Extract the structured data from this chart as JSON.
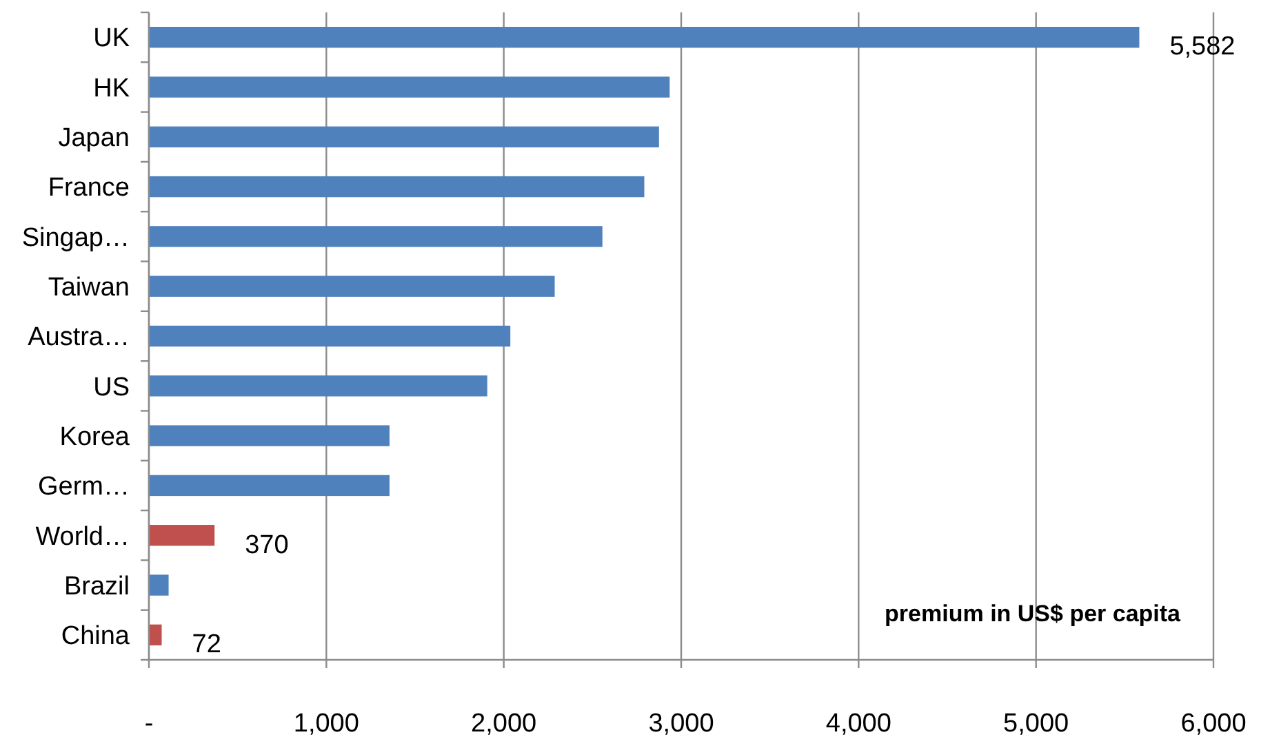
{
  "chart_data": {
    "type": "bar",
    "orientation": "horizontal",
    "categories": [
      "UK",
      "HK",
      "Japan",
      "France",
      "Singap…",
      "Taiwan",
      "Austra…",
      "US",
      "Korea",
      "Germ…",
      "World…",
      "Brazil",
      "China"
    ],
    "values": [
      5582,
      2935,
      2875,
      2792,
      2556,
      2287,
      2037,
      1907,
      1356,
      1356,
      370,
      111,
      72
    ],
    "colors": [
      "#4f81bd",
      "#4f81bd",
      "#4f81bd",
      "#4f81bd",
      "#4f81bd",
      "#4f81bd",
      "#4f81bd",
      "#4f81bd",
      "#4f81bd",
      "#4f81bd",
      "#c0504d",
      "#4f81bd",
      "#c0504d"
    ],
    "value_labels": [
      "5,582",
      null,
      null,
      null,
      null,
      null,
      null,
      null,
      null,
      null,
      "370",
      null,
      "72"
    ],
    "xlim": [
      0,
      6000
    ],
    "xticks": [
      {
        "value": 0,
        "label": "-"
      },
      {
        "value": 1000,
        "label": "1,000"
      },
      {
        "value": 2000,
        "label": "2,000"
      },
      {
        "value": 3000,
        "label": "3,000"
      },
      {
        "value": 4000,
        "label": "4,000"
      },
      {
        "value": 5000,
        "label": "5,000"
      },
      {
        "value": 6000,
        "label": "6,000"
      }
    ],
    "grid": "x",
    "annotations": [
      "premium in US$ per capita"
    ]
  }
}
